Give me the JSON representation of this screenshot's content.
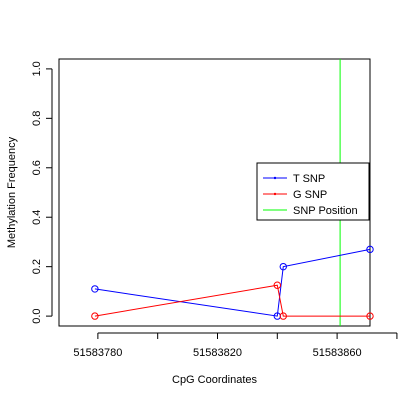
{
  "chart_data": {
    "type": "line",
    "title": "",
    "xlabel": "CpG Coordinates",
    "ylabel": "Methylation Frequency",
    "xlim": [
      51583767,
      51583871
    ],
    "ylim": [
      -0.04,
      1.04
    ],
    "x_ticks": [
      51583780,
      51583800,
      51583820,
      51583840,
      51583860,
      51583880
    ],
    "x_tick_labels": [
      "51583780",
      "",
      "51583820",
      "",
      "51583860",
      ""
    ],
    "y_ticks": [
      0.0,
      0.2,
      0.4,
      0.6,
      0.8,
      1.0
    ],
    "y_tick_labels": [
      "0.0",
      "0.2",
      "0.4",
      "0.6",
      "0.8",
      "1.0"
    ],
    "grid": false,
    "legend_position": "right",
    "series": [
      {
        "name": "T SNP",
        "color": "#0000ff",
        "x": [
          51583779,
          51583840,
          51583842,
          51583871
        ],
        "y": [
          0.11,
          0.0,
          0.2,
          0.27
        ]
      },
      {
        "name": "G SNP",
        "color": "#ff0000",
        "x": [
          51583779,
          51583840,
          51583842,
          51583871
        ],
        "y": [
          0.0,
          0.125,
          0.0,
          0.0
        ]
      }
    ],
    "snp_position": {
      "name": "SNP Position",
      "color": "#00ff00",
      "x": 51583861
    }
  }
}
